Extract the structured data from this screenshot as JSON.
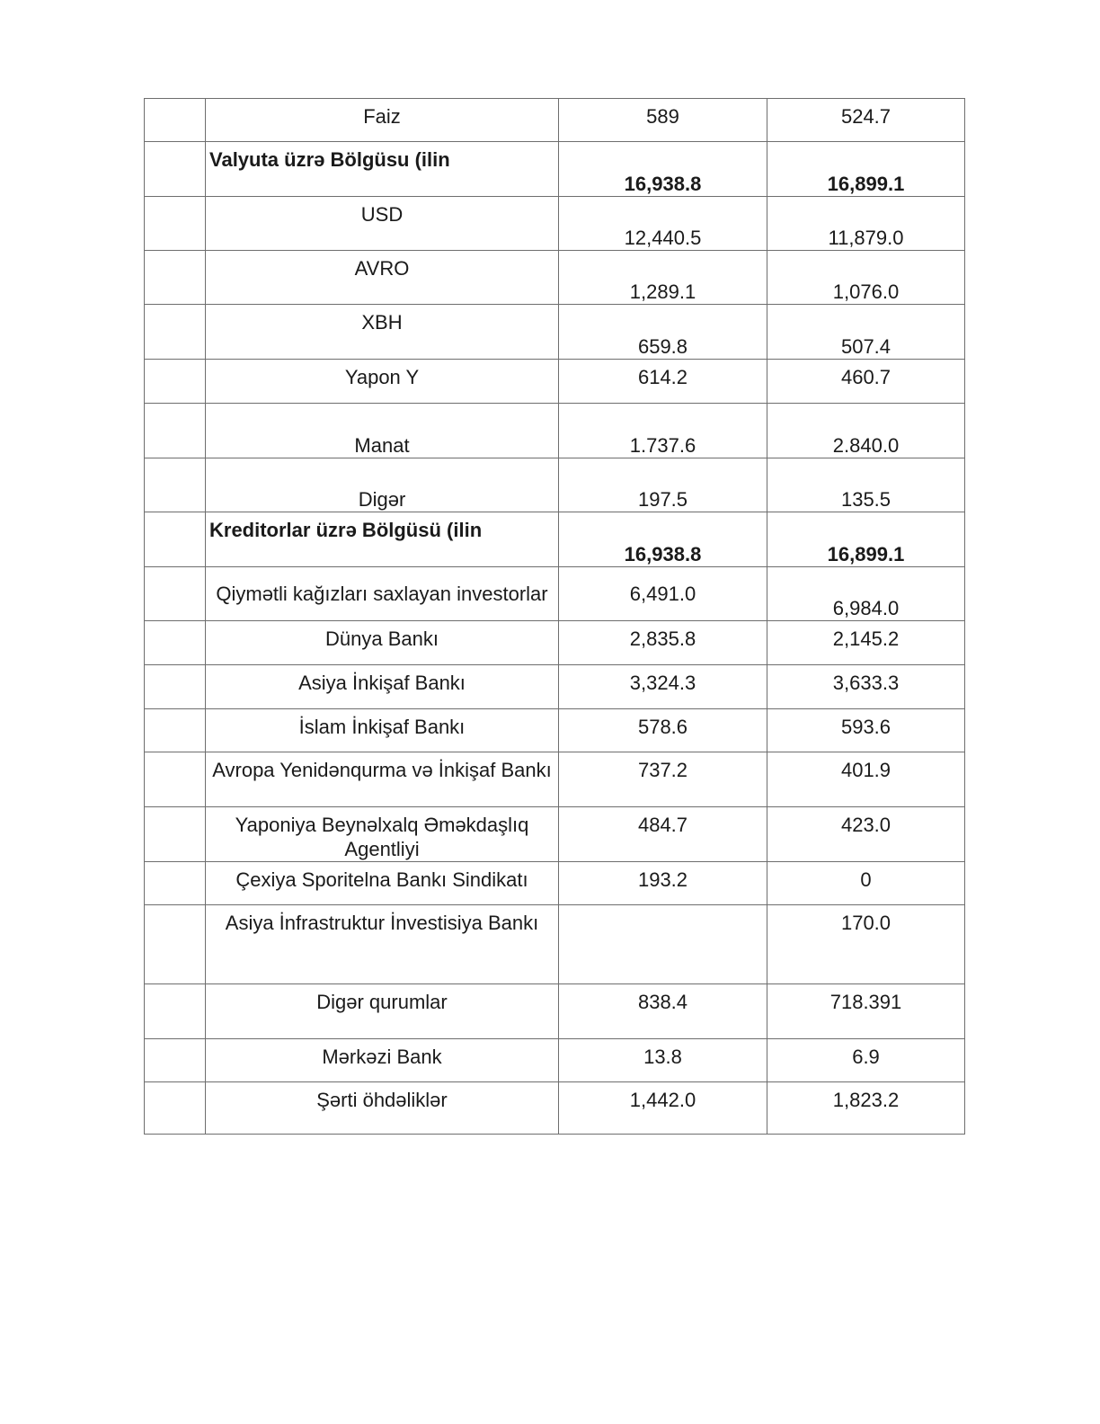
{
  "table": {
    "rows": [
      {
        "label": "Faiz",
        "v1": "589",
        "v2": "524.7"
      },
      {
        "label": "Valyuta üzrə Bölgüsu (ilin",
        "v1": "16,938.8",
        "v2": "16,899.1",
        "bold": true
      },
      {
        "label": "USD",
        "v1": "12,440.5",
        "v2": "11,879.0"
      },
      {
        "label": "AVRO",
        "v1": "1,289.1",
        "v2": "1,076.0"
      },
      {
        "label": "XBH",
        "v1": "659.8",
        "v2": "507.4"
      },
      {
        "label": "Yapon Y",
        "v1": "614.2",
        "v2": "460.7"
      },
      {
        "label": "Manat",
        "v1": "1.737.6",
        "v2": "2.840.0"
      },
      {
        "label": "Digər",
        "v1": "197.5",
        "v2": "135.5"
      },
      {
        "label": "Kreditorlar üzrə Bölgüsü (ilin",
        "v1": "16,938.8",
        "v2": "16,899.1",
        "bold": true
      },
      {
        "label": "Qiymətli kağızları saxlayan investorlar",
        "v1": "6,491.0",
        "v2": "6,984.0"
      },
      {
        "label": "Dünya Bankı",
        "v1": "2,835.8",
        "v2": "2,145.2"
      },
      {
        "label": "Asiya İnkişaf Bankı",
        "v1": "3,324.3",
        "v2": "3,633.3"
      },
      {
        "label": "İslam İnkişaf Bankı",
        "v1": "578.6",
        "v2": "593.6"
      },
      {
        "label": "Avropa Yenidənqurma və İnkişaf Bankı",
        "v1": "737.2",
        "v2": "401.9"
      },
      {
        "label": "Yaponiya Beynəlxalq Əməkdaşlıq Agentliyi",
        "v1": "484.7",
        "v2": "423.0"
      },
      {
        "label": "Çexiya Sporitelna Bankı Sindikatı",
        "v1": "193.2",
        "v2": "0"
      },
      {
        "label": "Asiya İnfrastruktur İnvestisiya Bankı",
        "v1": "",
        "v2": "170.0"
      },
      {
        "label": "Digər qurumlar",
        "v1": "838.4",
        "v2": "718.391"
      },
      {
        "label": "Mərkəzi Bank",
        "v1": "13.8",
        "v2": "6.9"
      },
      {
        "label": "Şərti öhdəliklər",
        "v1": "1,442.0",
        "v2": "1,823.2"
      }
    ]
  }
}
